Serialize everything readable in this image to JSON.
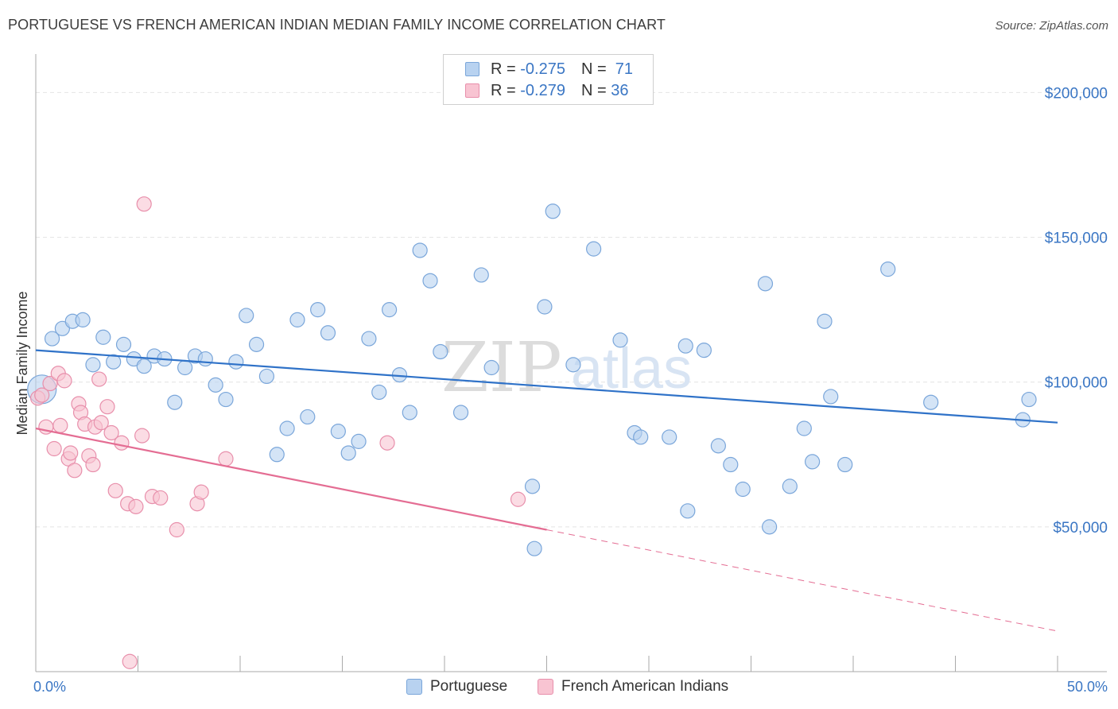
{
  "title": "PORTUGUESE VS FRENCH AMERICAN INDIAN MEDIAN FAMILY INCOME CORRELATION CHART",
  "source": "Source: ZipAtlas.com",
  "watermark": {
    "zip": "ZIP",
    "atlas": "atlas"
  },
  "legend": {
    "r_label": "R =",
    "n_label": "N =",
    "items": [
      {
        "series": "Portuguese",
        "r": "-0.275",
        "n": "71"
      },
      {
        "series": "French American Indians",
        "r": "-0.279",
        "n": "36"
      }
    ]
  },
  "colors": {
    "portuguese_fill": "#b8d2f0",
    "portuguese_stroke": "#7aa6da",
    "portuguese_line": "#2f72c8",
    "french_fill": "#f8c4d2",
    "french_stroke": "#e88fab",
    "french_line": "#e46d93",
    "axis_label": "#3a76c4",
    "grid": "#e4e4e4"
  },
  "chart_data": {
    "type": "scatter",
    "title": "PORTUGUESE VS FRENCH AMERICAN INDIAN MEDIAN FAMILY INCOME CORRELATION CHART",
    "xlabel": "",
    "ylabel": "Median Family Income",
    "x_unit": "percent",
    "xlim": [
      0,
      50
    ],
    "ylim": [
      0,
      210000
    ],
    "x_tick_labels": [
      "0.0%",
      "50.0%"
    ],
    "y_ticks": [
      50000,
      100000,
      150000,
      200000
    ],
    "y_tick_labels": [
      "$50,000",
      "$100,000",
      "$150,000",
      "$200,000"
    ],
    "grid": true,
    "legend_position": "top-center",
    "series": [
      {
        "name": "Portuguese",
        "r": -0.275,
        "n": 71,
        "trend": {
          "x": [
            0,
            50
          ],
          "y": [
            111000,
            86000
          ],
          "dashed_from_x": null
        },
        "points": [
          [
            0.3,
            97500
          ],
          [
            0.8,
            115000
          ],
          [
            1.3,
            118500
          ],
          [
            1.8,
            121000
          ],
          [
            2.3,
            121500
          ],
          [
            2.8,
            106000
          ],
          [
            3.3,
            115500
          ],
          [
            3.8,
            107000
          ],
          [
            4.3,
            113000
          ],
          [
            4.8,
            108000
          ],
          [
            5.3,
            105500
          ],
          [
            5.8,
            109000
          ],
          [
            6.3,
            108000
          ],
          [
            6.8,
            93000
          ],
          [
            7.3,
            105000
          ],
          [
            7.8,
            109000
          ],
          [
            8.3,
            108000
          ],
          [
            8.8,
            99000
          ],
          [
            9.3,
            94000
          ],
          [
            9.8,
            107000
          ],
          [
            10.3,
            123000
          ],
          [
            10.8,
            113000
          ],
          [
            11.3,
            102000
          ],
          [
            11.8,
            75000
          ],
          [
            12.3,
            84000
          ],
          [
            12.8,
            121500
          ],
          [
            13.3,
            88000
          ],
          [
            13.8,
            125000
          ],
          [
            14.3,
            117000
          ],
          [
            14.8,
            83000
          ],
          [
            15.3,
            75500
          ],
          [
            15.8,
            79500
          ],
          [
            16.3,
            115000
          ],
          [
            16.8,
            96500
          ],
          [
            17.3,
            125000
          ],
          [
            17.8,
            102500
          ],
          [
            18.3,
            89500
          ],
          [
            18.8,
            145500
          ],
          [
            19.3,
            135000
          ],
          [
            19.8,
            110500
          ],
          [
            20.8,
            89500
          ],
          [
            21.8,
            137000
          ],
          [
            22.3,
            105000
          ],
          [
            24.3,
            64000
          ],
          [
            24.4,
            42500
          ],
          [
            25.3,
            159000
          ],
          [
            24.9,
            126000
          ],
          [
            26.3,
            106000
          ],
          [
            27.3,
            146000
          ],
          [
            28.6,
            114500
          ],
          [
            29.3,
            82500
          ],
          [
            29.6,
            81000
          ],
          [
            31.0,
            81000
          ],
          [
            31.8,
            112500
          ],
          [
            31.9,
            55500
          ],
          [
            32.7,
            111000
          ],
          [
            33.4,
            78000
          ],
          [
            34.0,
            71500
          ],
          [
            34.6,
            63000
          ],
          [
            35.7,
            134000
          ],
          [
            35.9,
            50000
          ],
          [
            36.9,
            64000
          ],
          [
            37.6,
            84000
          ],
          [
            38.0,
            72500
          ],
          [
            38.6,
            121000
          ],
          [
            38.9,
            95000
          ],
          [
            39.6,
            71500
          ],
          [
            41.7,
            139000
          ],
          [
            43.8,
            93000
          ],
          [
            48.3,
            87000
          ],
          [
            48.6,
            94000
          ]
        ]
      },
      {
        "name": "French American Indians",
        "r": -0.279,
        "n": 36,
        "trend": {
          "x": [
            0,
            50
          ],
          "y": [
            84000,
            14000
          ],
          "dashed_from_x": 25
        },
        "points": [
          [
            0.1,
            94500
          ],
          [
            0.3,
            95500
          ],
          [
            0.5,
            84500
          ],
          [
            0.7,
            99500
          ],
          [
            0.9,
            77000
          ],
          [
            1.1,
            103000
          ],
          [
            1.2,
            85000
          ],
          [
            1.4,
            100500
          ],
          [
            1.6,
            73500
          ],
          [
            1.7,
            75500
          ],
          [
            1.9,
            69500
          ],
          [
            2.1,
            92500
          ],
          [
            2.2,
            89500
          ],
          [
            2.4,
            85500
          ],
          [
            2.6,
            74500
          ],
          [
            2.8,
            71500
          ],
          [
            2.9,
            84500
          ],
          [
            3.1,
            101000
          ],
          [
            3.2,
            86000
          ],
          [
            3.5,
            91500
          ],
          [
            3.7,
            82500
          ],
          [
            3.9,
            62500
          ],
          [
            4.2,
            79000
          ],
          [
            4.5,
            58000
          ],
          [
            4.6,
            3500
          ],
          [
            4.9,
            57000
          ],
          [
            5.2,
            81500
          ],
          [
            5.3,
            161500
          ],
          [
            5.7,
            60500
          ],
          [
            6.1,
            60000
          ],
          [
            6.9,
            49000
          ],
          [
            7.9,
            58000
          ],
          [
            8.1,
            62000
          ],
          [
            9.3,
            73500
          ],
          [
            17.2,
            79000
          ],
          [
            23.6,
            59500
          ]
        ]
      }
    ]
  }
}
